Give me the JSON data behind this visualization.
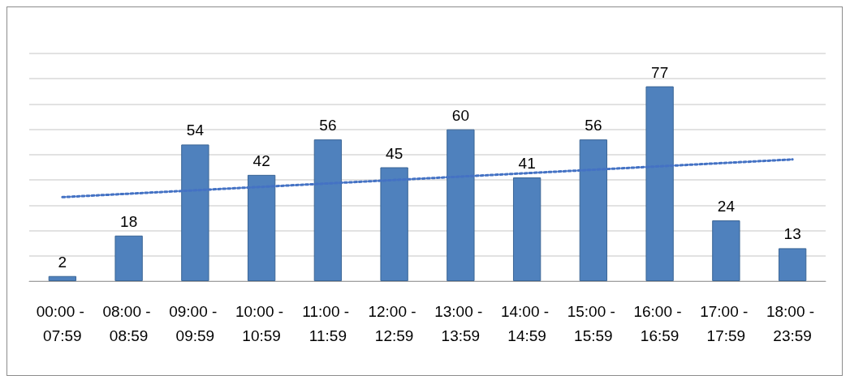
{
  "chart_data": {
    "type": "bar",
    "categories": [
      "00:00 - 07:59",
      "08:00 - 08:59",
      "09:00 - 09:59",
      "10:00 - 10:59",
      "11:00 - 11:59",
      "12:00 - 12:59",
      "13:00 - 13:59",
      "14:00 - 14:59",
      "15:00 - 15:59",
      "16:00 - 16:59",
      "17:00 - 17:59",
      "18:00 - 23:59"
    ],
    "series": [
      {
        "color": "#4f81bd",
        "values": [
          2,
          18,
          54,
          42,
          56,
          45,
          60,
          41,
          56,
          77,
          24,
          13
        ],
        "value_labels": [
          "2",
          "18",
          "54",
          "42",
          "56",
          "45",
          "60",
          "41",
          "56",
          "77",
          "24",
          "13"
        ]
      },
      {
        "type": "line",
        "color": "#4472c4",
        "x": [
          "00:00 - 07:59",
          "18:00 - 23:59"
        ],
        "values": [
          33.2,
          48.1
        ],
        "line_style": "dotted",
        "marker": "none"
      }
    ],
    "ylim": [
      0,
      90
    ],
    "yticks": [
      {
        "value": 0,
        "label": null
      },
      {
        "value": 10,
        "label": null
      },
      {
        "value": 20,
        "label": null
      },
      {
        "value": 30,
        "label": null
      },
      {
        "value": 40,
        "label": null
      },
      {
        "value": 50,
        "label": null
      },
      {
        "value": 60,
        "label": null
      },
      {
        "value": 70,
        "label": null
      },
      {
        "value": 80,
        "label": null
      },
      {
        "value": 90,
        "label": null
      }
    ],
    "tick_labels": "x",
    "grid": "y"
  }
}
